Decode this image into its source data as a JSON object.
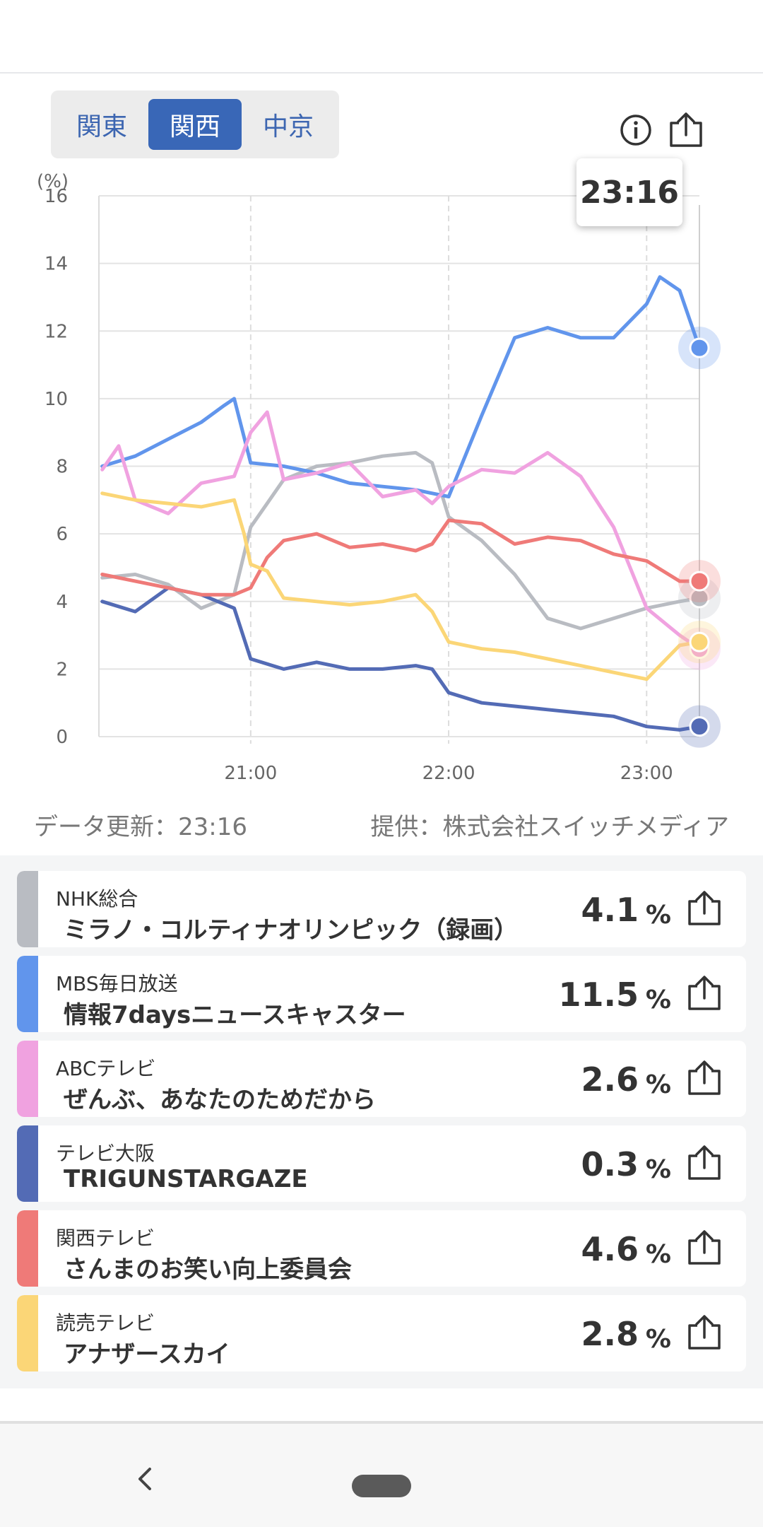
{
  "regions": {
    "tabs": [
      "関東",
      "関西",
      "中京"
    ],
    "active_index": 1
  },
  "tooltip_time": "23:16",
  "footer": {
    "update": "データ更新：23:16",
    "provider": "提供：株式会社スイッチメディア"
  },
  "channels": [
    {
      "station": "NHK総合",
      "program": "ミラノ・コルティナオリンピック（録画）",
      "value": "4.1",
      "unit": "%",
      "color": "#b9bcc2"
    },
    {
      "station": "MBS毎日放送",
      "program": "情報7daysニュースキャスター",
      "value": "11.5",
      "unit": "%",
      "color": "#6195ec"
    },
    {
      "station": "ABCテレビ",
      "program": "ぜんぶ、あなたのためだから",
      "value": "2.6",
      "unit": "%",
      "color": "#f0a2e0"
    },
    {
      "station": "テレビ大阪",
      "program": "TRIGUNSTARGAZE",
      "value": "0.3",
      "unit": "%",
      "color": "#536bb5"
    },
    {
      "station": "関西テレビ",
      "program": "さんまのお笑い向上委員会",
      "value": "4.6",
      "unit": "%",
      "color": "#ef7a78"
    },
    {
      "station": "読売テレビ",
      "program": "アナザースカイ",
      "value": "2.8",
      "unit": "%",
      "color": "#fbd677"
    }
  ],
  "chart_data": {
    "type": "line",
    "ylabel": "(%)",
    "ylim": [
      0,
      16
    ],
    "yticks": [
      0,
      2,
      4,
      6,
      8,
      10,
      12,
      14,
      16
    ],
    "xticks": [
      "21:00",
      "22:00",
      "23:00"
    ],
    "xlim_minutes": [
      "20:14",
      "23:16"
    ],
    "grid": true,
    "series": [
      {
        "color": "#b9bcc2",
        "x": [
          "20:15",
          "20:25",
          "20:35",
          "20:45",
          "20:55",
          "21:00",
          "21:10",
          "21:20",
          "21:30",
          "21:40",
          "21:50",
          "21:55",
          "22:00",
          "22:10",
          "22:20",
          "22:30",
          "22:40",
          "22:50",
          "23:00",
          "23:10",
          "23:16"
        ],
        "y": [
          4.7,
          4.8,
          4.5,
          3.8,
          4.2,
          6.2,
          7.6,
          8.0,
          8.1,
          8.3,
          8.4,
          8.1,
          6.5,
          5.8,
          4.8,
          3.5,
          3.2,
          3.5,
          3.8,
          4.0,
          4.1
        ]
      },
      {
        "color": "#6195ec",
        "x": [
          "20:15",
          "20:25",
          "20:35",
          "20:45",
          "20:52",
          "20:55",
          "21:00",
          "21:10",
          "21:20",
          "21:30",
          "21:40",
          "21:50",
          "21:55",
          "22:00",
          "22:10",
          "22:20",
          "22:30",
          "22:40",
          "22:50",
          "23:00",
          "23:04",
          "23:10",
          "23:16"
        ],
        "y": [
          8.0,
          8.3,
          8.8,
          9.3,
          9.8,
          10.0,
          8.1,
          8.0,
          7.8,
          7.5,
          7.4,
          7.3,
          7.2,
          7.1,
          9.5,
          11.8,
          12.1,
          11.8,
          11.8,
          12.8,
          13.6,
          13.2,
          11.5
        ]
      },
      {
        "color": "#f0a2e0",
        "x": [
          "20:15",
          "20:20",
          "20:25",
          "20:35",
          "20:45",
          "20:55",
          "21:00",
          "21:05",
          "21:10",
          "21:20",
          "21:30",
          "21:40",
          "21:50",
          "21:55",
          "22:00",
          "22:10",
          "22:20",
          "22:30",
          "22:40",
          "22:50",
          "23:00",
          "23:10",
          "23:16"
        ],
        "y": [
          7.9,
          8.6,
          7.0,
          6.6,
          7.5,
          7.7,
          9.0,
          9.6,
          7.6,
          7.8,
          8.1,
          7.1,
          7.3,
          6.9,
          7.4,
          7.9,
          7.8,
          8.4,
          7.7,
          6.2,
          3.8,
          3.0,
          2.6
        ]
      },
      {
        "color": "#536bb5",
        "x": [
          "20:15",
          "20:25",
          "20:35",
          "20:45",
          "20:55",
          "21:00",
          "21:10",
          "21:20",
          "21:30",
          "21:40",
          "21:50",
          "21:55",
          "22:00",
          "22:10",
          "22:20",
          "22:30",
          "22:40",
          "22:50",
          "23:00",
          "23:10",
          "23:16"
        ],
        "y": [
          4.0,
          3.7,
          4.4,
          4.2,
          3.8,
          2.3,
          2.0,
          2.2,
          2.0,
          2.0,
          2.1,
          2.0,
          1.3,
          1.0,
          0.9,
          0.8,
          0.7,
          0.6,
          0.3,
          0.2,
          0.3
        ]
      },
      {
        "color": "#ef7a78",
        "x": [
          "20:15",
          "20:25",
          "20:35",
          "20:45",
          "20:55",
          "21:00",
          "21:05",
          "21:10",
          "21:20",
          "21:30",
          "21:40",
          "21:50",
          "21:55",
          "22:00",
          "22:10",
          "22:20",
          "22:30",
          "22:40",
          "22:50",
          "23:00",
          "23:10",
          "23:16"
        ],
        "y": [
          4.8,
          4.6,
          4.4,
          4.2,
          4.2,
          4.4,
          5.3,
          5.8,
          6.0,
          5.6,
          5.7,
          5.5,
          5.7,
          6.4,
          6.3,
          5.7,
          5.9,
          5.8,
          5.4,
          5.2,
          4.6,
          4.6
        ]
      },
      {
        "color": "#fbd677",
        "x": [
          "20:15",
          "20:25",
          "20:35",
          "20:45",
          "20:55",
          "20:58",
          "21:00",
          "21:05",
          "21:10",
          "21:20",
          "21:30",
          "21:40",
          "21:50",
          "21:55",
          "22:00",
          "22:10",
          "22:20",
          "22:30",
          "22:40",
          "22:50",
          "23:00",
          "23:10",
          "23:16"
        ],
        "y": [
          7.2,
          7.0,
          6.9,
          6.8,
          7.0,
          6.0,
          5.1,
          4.9,
          4.1,
          4.0,
          3.9,
          4.0,
          4.2,
          3.7,
          2.8,
          2.6,
          2.5,
          2.3,
          2.1,
          1.9,
          1.7,
          2.7,
          2.8
        ]
      }
    ]
  }
}
